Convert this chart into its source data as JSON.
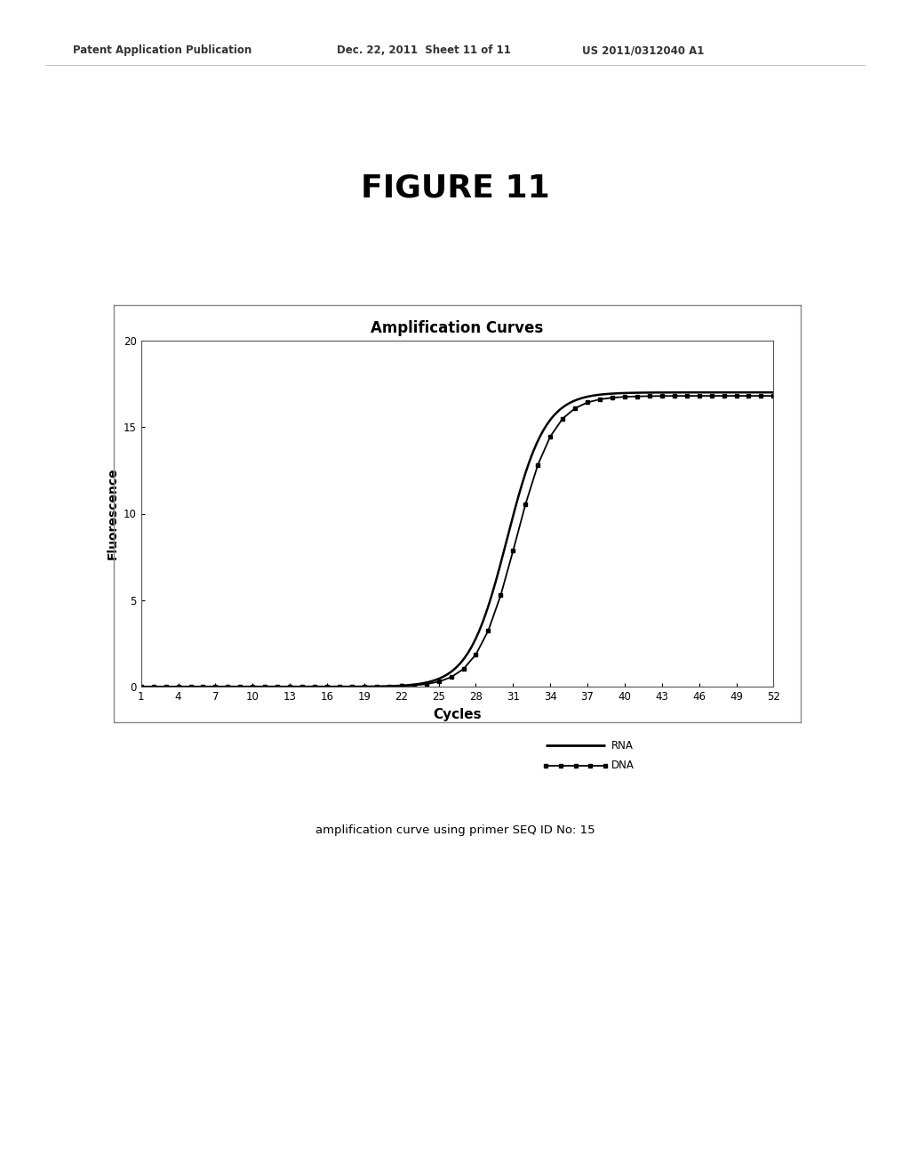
{
  "header_left": "Patent Application Publication",
  "header_mid": "Dec. 22, 2011  Sheet 11 of 11",
  "header_right": "US 2011/0312040 A1",
  "figure_title": "FIGURE 11",
  "chart_title": "Amplification Curves",
  "xlabel": "Cycles",
  "ylabel": "Fluorescence",
  "x_ticks": [
    1,
    4,
    7,
    10,
    13,
    16,
    19,
    22,
    25,
    28,
    31,
    34,
    37,
    40,
    43,
    46,
    49,
    52
  ],
  "y_ticks": [
    0,
    5,
    10,
    15,
    20
  ],
  "ylim": [
    0,
    20
  ],
  "xlim": [
    1,
    52
  ],
  "rna_color": "#000000",
  "dna_color": "#000000",
  "background_color": "#ffffff",
  "caption": "amplification curve using primer SEQ ID No: 15",
  "rna_ct": 30.5,
  "dna_ct": 31.2,
  "rna_k": 0.65,
  "dna_k": 0.65,
  "rna_max": 17.0,
  "dna_max": 16.8,
  "legend_rna": "RNA",
  "legend_dna": "DNA"
}
